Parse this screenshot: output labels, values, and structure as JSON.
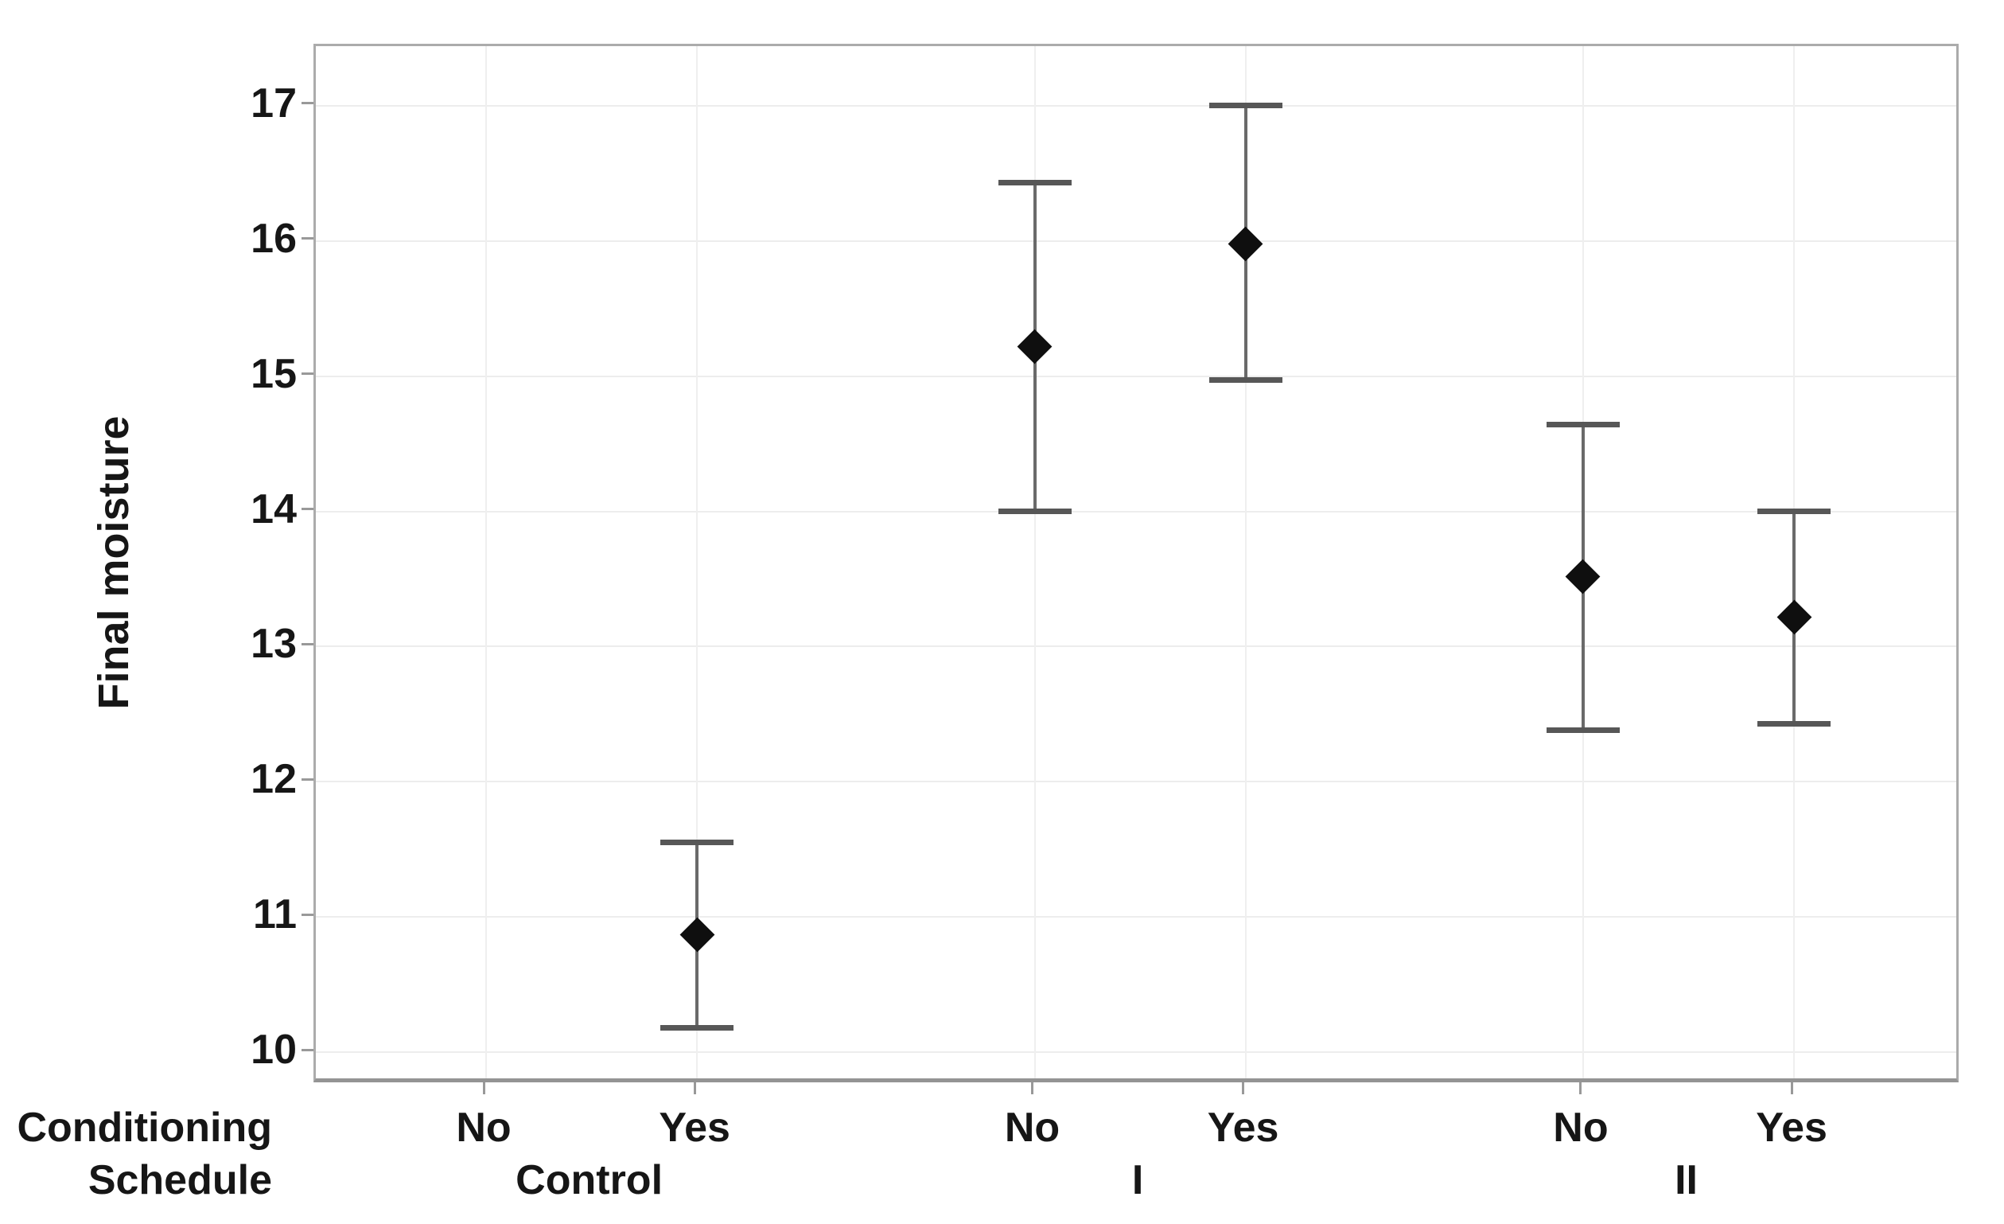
{
  "chart_data": {
    "type": "interval_plot",
    "title": "",
    "ylabel": "Final moisture",
    "xlabel_rows": [
      "Conditioning",
      "Schedule"
    ],
    "marker": "diamond",
    "grid": true,
    "legend": false,
    "y_axis": {
      "ticks": [
        10,
        11,
        12,
        13,
        14,
        15,
        16,
        17
      ],
      "plot_top_value": 17.44,
      "plot_bottom_value": 9.76
    },
    "groups": [
      {
        "schedule": "Control",
        "points": [
          {
            "conditioning": "No",
            "mean": null,
            "ci_low": null,
            "ci_high": null
          },
          {
            "conditioning": "Yes",
            "mean": 10.87,
            "ci_low": 10.18,
            "ci_high": 11.55
          }
        ]
      },
      {
        "schedule": "I",
        "points": [
          {
            "conditioning": "No",
            "mean": 15.22,
            "ci_low": 14.0,
            "ci_high": 16.43
          },
          {
            "conditioning": "Yes",
            "mean": 15.98,
            "ci_low": 14.97,
            "ci_high": 17.0
          }
        ]
      },
      {
        "schedule": "II",
        "points": [
          {
            "conditioning": "No",
            "mean": 13.52,
            "ci_low": 12.38,
            "ci_high": 14.64
          },
          {
            "conditioning": "Yes",
            "mean": 13.22,
            "ci_low": 12.43,
            "ci_high": 14.0
          }
        ]
      }
    ],
    "layout": {
      "group_centers_pct": [
        16.76,
        50.1,
        83.44
      ],
      "pair_offset_pct": 6.41
    }
  },
  "colors": {
    "text": "#161616",
    "gridline": "#ededed",
    "axis_border": "#ababab",
    "axis_border_bottom": "#949494",
    "tick": "#999999",
    "interval_line": "#6a6a6a",
    "interval_cap": "#575757",
    "marker": "#0f0f0f",
    "background": "#ffffff"
  }
}
